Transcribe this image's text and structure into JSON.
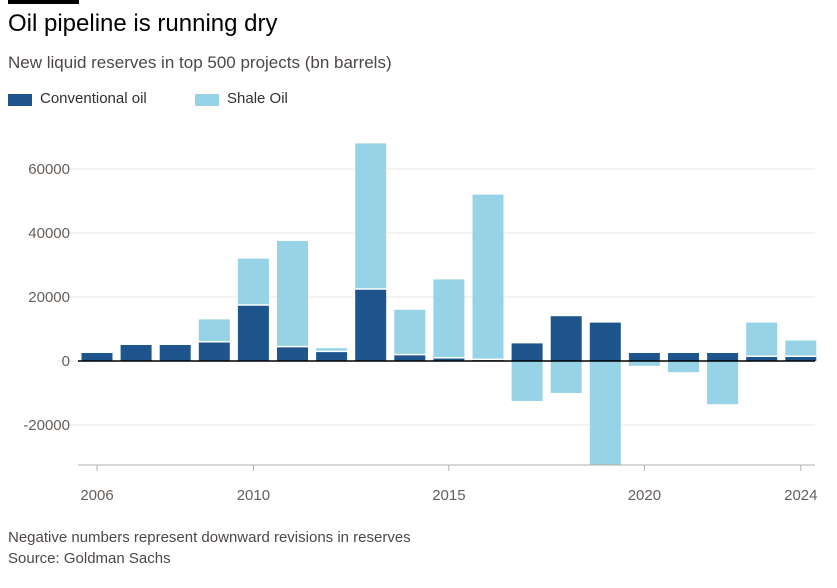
{
  "header": {
    "title": "Oil pipeline is running dry",
    "subtitle": "New liquid reserves in top 500 projects (bn barrels)"
  },
  "legend": [
    {
      "label": "Conventional oil",
      "color": "#1e558c"
    },
    {
      "label": "Shale Oil",
      "color": "#96d3e6"
    }
  ],
  "footer": {
    "note": "Negative numbers represent downward revisions in reserves",
    "source": "Source: Goldman Sachs"
  },
  "chart_data": {
    "type": "bar",
    "stacked": true,
    "x": [
      2006,
      2007,
      2008,
      2009,
      2010,
      2011,
      2012,
      2013,
      2014,
      2015,
      2016,
      2017,
      2018,
      2019,
      2020,
      2021,
      2022,
      2023,
      2024
    ],
    "x_tick_labels": [
      "2006",
      "2010",
      "2015",
      "2020",
      "2024"
    ],
    "series": [
      {
        "name": "Conventional oil",
        "color": "#1e558c",
        "values": [
          2500,
          5000,
          5000,
          6000,
          17500,
          4500,
          3000,
          22500,
          2000,
          1000,
          500,
          5500,
          14000,
          12000,
          2500,
          2500,
          2500,
          1500,
          1500
        ]
      },
      {
        "name": "Shale Oil",
        "color": "#96d3e6",
        "values": [
          0,
          0,
          0,
          7000,
          14500,
          33000,
          1000,
          45500,
          14000,
          24500,
          51500,
          -12500,
          -10000,
          -32500,
          -1500,
          -3500,
          -13500,
          10500,
          4900
        ]
      }
    ],
    "ylim": [
      -32500,
      70000
    ],
    "yticks": [
      -20000,
      0,
      20000,
      40000,
      60000
    ],
    "ytick_labels": [
      "-20000",
      "0",
      "20000",
      "40000",
      "60000"
    ],
    "grid": true,
    "legend_position": "top-left"
  }
}
